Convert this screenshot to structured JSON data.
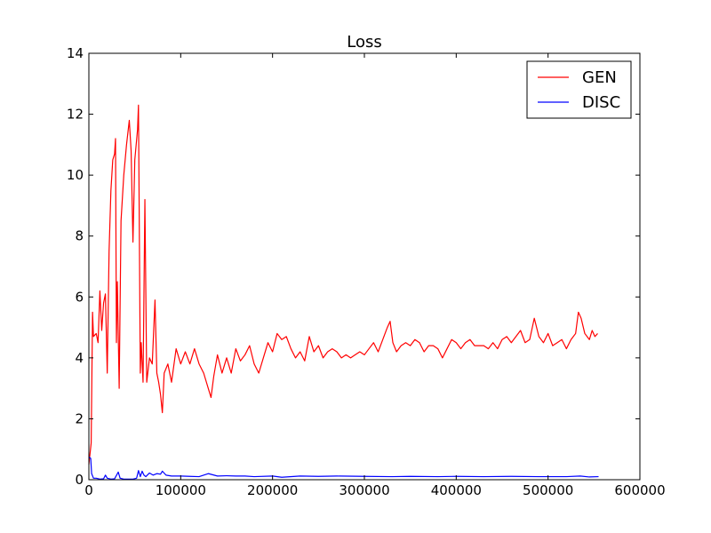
{
  "chart_data": {
    "type": "line",
    "title": "Loss",
    "xlabel": "",
    "ylabel": "",
    "xlim": [
      0,
      600000
    ],
    "ylim": [
      0,
      14
    ],
    "xticks": [
      0,
      100000,
      200000,
      300000,
      400000,
      500000,
      600000
    ],
    "xtick_labels": [
      "0",
      "100000",
      "200000",
      "300000",
      "400000",
      "500000",
      "600000"
    ],
    "yticks": [
      0,
      2,
      4,
      6,
      8,
      10,
      12,
      14
    ],
    "ytick_labels": [
      "0",
      "2",
      "4",
      "6",
      "8",
      "10",
      "12",
      "14"
    ],
    "grid": false,
    "legend_position": "top-right",
    "series": [
      {
        "name": "GEN",
        "color": "#ff0000",
        "points": [
          [
            0,
            0.5
          ],
          [
            2500,
            1.2
          ],
          [
            4000,
            5.5
          ],
          [
            5000,
            4.7
          ],
          [
            8000,
            4.8
          ],
          [
            10000,
            4.5
          ],
          [
            12000,
            6.2
          ],
          [
            14000,
            4.9
          ],
          [
            16000,
            5.8
          ],
          [
            18000,
            6.1
          ],
          [
            20000,
            3.5
          ],
          [
            22000,
            7.5
          ],
          [
            24000,
            9.5
          ],
          [
            26000,
            10.5
          ],
          [
            28000,
            10.7
          ],
          [
            29000,
            11.2
          ],
          [
            30000,
            4.5
          ],
          [
            31000,
            6.5
          ],
          [
            33000,
            3.0
          ],
          [
            35000,
            8.5
          ],
          [
            38000,
            10.0
          ],
          [
            41000,
            11.0
          ],
          [
            44000,
            11.8
          ],
          [
            46000,
            10.8
          ],
          [
            48000,
            7.8
          ],
          [
            50000,
            10.5
          ],
          [
            53000,
            11.5
          ],
          [
            54000,
            12.3
          ],
          [
            56000,
            3.5
          ],
          [
            57000,
            4.5
          ],
          [
            59000,
            3.2
          ],
          [
            61000,
            9.2
          ],
          [
            63000,
            3.2
          ],
          [
            66000,
            4.0
          ],
          [
            69000,
            3.8
          ],
          [
            72000,
            5.9
          ],
          [
            74000,
            3.5
          ],
          [
            76000,
            3.2
          ],
          [
            78000,
            2.8
          ],
          [
            80000,
            2.2
          ],
          [
            82000,
            3.5
          ],
          [
            86000,
            3.8
          ],
          [
            90000,
            3.2
          ],
          [
            95000,
            4.3
          ],
          [
            100000,
            3.8
          ],
          [
            105000,
            4.2
          ],
          [
            110000,
            3.8
          ],
          [
            115000,
            4.3
          ],
          [
            120000,
            3.8
          ],
          [
            125000,
            3.5
          ],
          [
            130000,
            3.0
          ],
          [
            133000,
            2.7
          ],
          [
            136000,
            3.4
          ],
          [
            140000,
            4.1
          ],
          [
            145000,
            3.5
          ],
          [
            150000,
            4.0
          ],
          [
            155000,
            3.5
          ],
          [
            160000,
            4.3
          ],
          [
            165000,
            3.9
          ],
          [
            170000,
            4.1
          ],
          [
            175000,
            4.4
          ],
          [
            180000,
            3.8
          ],
          [
            185000,
            3.5
          ],
          [
            190000,
            4.0
          ],
          [
            195000,
            4.5
          ],
          [
            200000,
            4.2
          ],
          [
            205000,
            4.8
          ],
          [
            210000,
            4.6
          ],
          [
            215000,
            4.7
          ],
          [
            220000,
            4.3
          ],
          [
            225000,
            4.0
          ],
          [
            230000,
            4.2
          ],
          [
            235000,
            3.9
          ],
          [
            240000,
            4.7
          ],
          [
            245000,
            4.2
          ],
          [
            250000,
            4.4
          ],
          [
            255000,
            4.0
          ],
          [
            260000,
            4.2
          ],
          [
            265000,
            4.3
          ],
          [
            270000,
            4.2
          ],
          [
            275000,
            4.0
          ],
          [
            280000,
            4.1
          ],
          [
            285000,
            4.0
          ],
          [
            290000,
            4.1
          ],
          [
            295000,
            4.2
          ],
          [
            300000,
            4.1
          ],
          [
            305000,
            4.3
          ],
          [
            310000,
            4.5
          ],
          [
            315000,
            4.2
          ],
          [
            320000,
            4.6
          ],
          [
            325000,
            5.0
          ],
          [
            328000,
            5.2
          ],
          [
            331000,
            4.5
          ],
          [
            335000,
            4.2
          ],
          [
            340000,
            4.4
          ],
          [
            345000,
            4.5
          ],
          [
            350000,
            4.4
          ],
          [
            355000,
            4.6
          ],
          [
            360000,
            4.5
          ],
          [
            365000,
            4.2
          ],
          [
            370000,
            4.4
          ],
          [
            375000,
            4.4
          ],
          [
            380000,
            4.3
          ],
          [
            385000,
            4.0
          ],
          [
            390000,
            4.3
          ],
          [
            395000,
            4.6
          ],
          [
            400000,
            4.5
          ],
          [
            405000,
            4.3
          ],
          [
            410000,
            4.5
          ],
          [
            415000,
            4.6
          ],
          [
            420000,
            4.4
          ],
          [
            425000,
            4.4
          ],
          [
            430000,
            4.4
          ],
          [
            435000,
            4.3
          ],
          [
            440000,
            4.5
          ],
          [
            445000,
            4.3
          ],
          [
            450000,
            4.6
          ],
          [
            455000,
            4.7
          ],
          [
            460000,
            4.5
          ],
          [
            465000,
            4.7
          ],
          [
            470000,
            4.9
          ],
          [
            475000,
            4.5
          ],
          [
            480000,
            4.6
          ],
          [
            485000,
            5.3
          ],
          [
            490000,
            4.7
          ],
          [
            495000,
            4.5
          ],
          [
            500000,
            4.8
          ],
          [
            505000,
            4.4
          ],
          [
            510000,
            4.5
          ],
          [
            515000,
            4.6
          ],
          [
            520000,
            4.3
          ],
          [
            525000,
            4.6
          ],
          [
            530000,
            4.8
          ],
          [
            533000,
            5.5
          ],
          [
            536000,
            5.3
          ],
          [
            540000,
            4.8
          ],
          [
            545000,
            4.6
          ],
          [
            548000,
            4.9
          ],
          [
            551000,
            4.7
          ],
          [
            554000,
            4.8
          ]
        ]
      },
      {
        "name": "DISC",
        "color": "#0000ff",
        "points": [
          [
            0,
            0.75
          ],
          [
            2000,
            0.7
          ],
          [
            3000,
            0.2
          ],
          [
            5000,
            0.05
          ],
          [
            8000,
            0.05
          ],
          [
            12000,
            0.02
          ],
          [
            16000,
            0.03
          ],
          [
            18000,
            0.15
          ],
          [
            20000,
            0.05
          ],
          [
            24000,
            0.02
          ],
          [
            28000,
            0.03
          ],
          [
            32000,
            0.25
          ],
          [
            34000,
            0.05
          ],
          [
            38000,
            0.02
          ],
          [
            44000,
            0.02
          ],
          [
            48000,
            0.02
          ],
          [
            52000,
            0.05
          ],
          [
            54000,
            0.3
          ],
          [
            56000,
            0.1
          ],
          [
            58000,
            0.28
          ],
          [
            60000,
            0.15
          ],
          [
            62000,
            0.1
          ],
          [
            66000,
            0.22
          ],
          [
            70000,
            0.15
          ],
          [
            74000,
            0.2
          ],
          [
            78000,
            0.18
          ],
          [
            80000,
            0.28
          ],
          [
            84000,
            0.15
          ],
          [
            90000,
            0.12
          ],
          [
            100000,
            0.12
          ],
          [
            110000,
            0.11
          ],
          [
            120000,
            0.1
          ],
          [
            130000,
            0.2
          ],
          [
            140000,
            0.12
          ],
          [
            150000,
            0.13
          ],
          [
            160000,
            0.12
          ],
          [
            170000,
            0.12
          ],
          [
            180000,
            0.1
          ],
          [
            200000,
            0.12
          ],
          [
            210000,
            0.08
          ],
          [
            230000,
            0.12
          ],
          [
            250000,
            0.11
          ],
          [
            270000,
            0.12
          ],
          [
            300000,
            0.11
          ],
          [
            330000,
            0.1
          ],
          [
            350000,
            0.11
          ],
          [
            380000,
            0.1
          ],
          [
            400000,
            0.11
          ],
          [
            430000,
            0.1
          ],
          [
            460000,
            0.11
          ],
          [
            490000,
            0.1
          ],
          [
            520000,
            0.1
          ],
          [
            535000,
            0.12
          ],
          [
            545000,
            0.09
          ],
          [
            555000,
            0.1
          ]
        ]
      }
    ]
  }
}
